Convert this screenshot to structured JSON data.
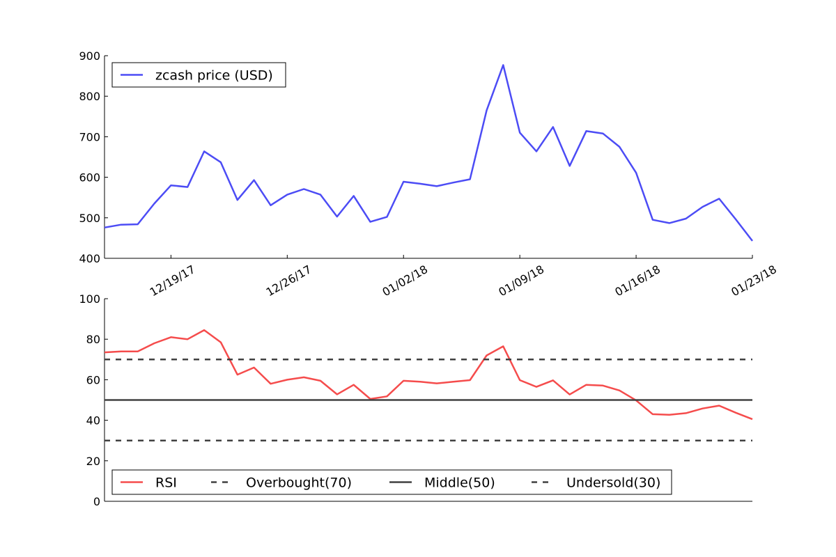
{
  "chart_data": [
    {
      "type": "line",
      "title": "",
      "xlabel": "",
      "ylabel": "",
      "ylim": [
        400,
        900
      ],
      "yticks": [
        400,
        500,
        600,
        700,
        800,
        900
      ],
      "x_tick_labels": [
        "12/19/17",
        "12/26/17",
        "01/02/18",
        "01/09/18",
        "01/16/18",
        "01/23/18"
      ],
      "legend_position": "upper-left",
      "grid": false,
      "x": [
        "2017-12-15",
        "2017-12-16",
        "2017-12-17",
        "2017-12-18",
        "2017-12-19",
        "2017-12-20",
        "2017-12-21",
        "2017-12-22",
        "2017-12-23",
        "2017-12-24",
        "2017-12-25",
        "2017-12-26",
        "2017-12-27",
        "2017-12-28",
        "2017-12-29",
        "2017-12-30",
        "2017-12-31",
        "2018-01-01",
        "2018-01-02",
        "2018-01-03",
        "2018-01-04",
        "2018-01-05",
        "2018-01-06",
        "2018-01-07",
        "2018-01-08",
        "2018-01-09",
        "2018-01-10",
        "2018-01-11",
        "2018-01-12",
        "2018-01-13",
        "2018-01-14",
        "2018-01-15",
        "2018-01-16",
        "2018-01-17",
        "2018-01-18",
        "2018-01-19",
        "2018-01-20",
        "2018-01-21",
        "2018-01-22",
        "2018-01-23"
      ],
      "series": [
        {
          "name": "zcash price (USD)",
          "color": "#4c4cf5",
          "values": [
            476,
            483,
            484,
            535,
            580,
            576,
            664,
            637,
            544,
            593,
            531,
            557,
            571,
            557,
            503,
            554,
            490,
            502,
            589,
            584,
            578,
            587,
            595,
            765,
            877,
            710,
            664,
            724,
            628,
            714,
            708,
            675,
            611,
            495,
            487,
            498,
            527,
            547,
            496,
            443
          ]
        }
      ]
    },
    {
      "type": "line",
      "title": "",
      "xlabel": "",
      "ylabel": "",
      "ylim": [
        0,
        100
      ],
      "yticks": [
        0,
        20,
        40,
        60,
        80,
        100
      ],
      "legend_position": "lower-left",
      "legend_columns": 4,
      "grid": false,
      "x": [
        "2017-12-15",
        "2017-12-16",
        "2017-12-17",
        "2017-12-18",
        "2017-12-19",
        "2017-12-20",
        "2017-12-21",
        "2017-12-22",
        "2017-12-23",
        "2017-12-24",
        "2017-12-25",
        "2017-12-26",
        "2017-12-27",
        "2017-12-28",
        "2017-12-29",
        "2017-12-30",
        "2017-12-31",
        "2018-01-01",
        "2018-01-02",
        "2018-01-03",
        "2018-01-04",
        "2018-01-05",
        "2018-01-06",
        "2018-01-07",
        "2018-01-08",
        "2018-01-09",
        "2018-01-10",
        "2018-01-11",
        "2018-01-12",
        "2018-01-13",
        "2018-01-14",
        "2018-01-15",
        "2018-01-16",
        "2018-01-17",
        "2018-01-18",
        "2018-01-19",
        "2018-01-20",
        "2018-01-21",
        "2018-01-22",
        "2018-01-23"
      ],
      "series": [
        {
          "name": "RSI",
          "color": "#f54c4c",
          "style": "solid",
          "values": [
            73.5,
            74,
            74,
            78,
            81,
            80,
            84.5,
            78.5,
            62.5,
            66,
            58,
            60,
            61.2,
            59.5,
            52.8,
            57.5,
            50.5,
            51.8,
            59.5,
            59,
            58.2,
            59,
            59.8,
            72,
            76.5,
            59.8,
            56.5,
            59.7,
            52.7,
            57.5,
            57.1,
            54.7,
            49.8,
            43,
            42.7,
            43.5,
            45.8,
            47.2,
            43.7,
            40.5
          ]
        },
        {
          "name": "Overbought(70)",
          "color": "#404040",
          "style": "dashed",
          "constant": 70
        },
        {
          "name": "Middle(50)",
          "color": "#404040",
          "style": "solid",
          "constant": 50
        },
        {
          "name": "Undersold(30)",
          "color": "#404040",
          "style": "dashed",
          "constant": 30
        }
      ]
    }
  ]
}
